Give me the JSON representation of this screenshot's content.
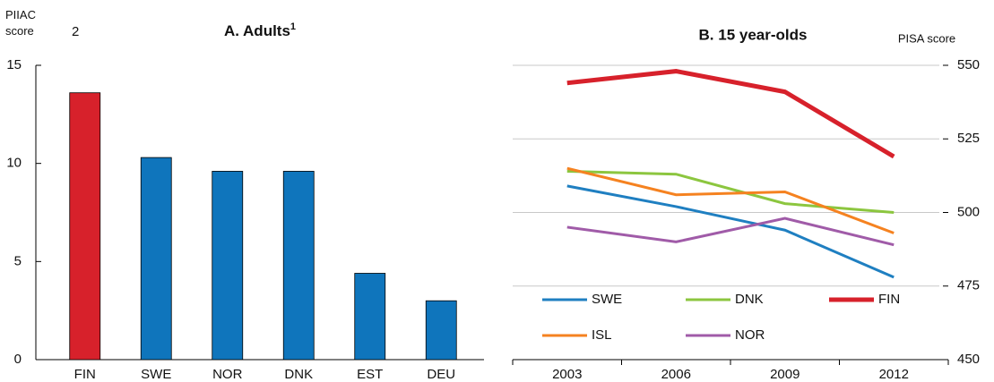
{
  "chart_data": [
    {
      "type": "bar",
      "title": "A. Adults",
      "title_note": "1",
      "ylabel": "PIIAC score",
      "ylabel_note": "2",
      "categories": [
        "FIN",
        "SWE",
        "NOR",
        "DNK",
        "EST",
        "DEU"
      ],
      "values": [
        13.6,
        10.3,
        9.6,
        9.6,
        4.4,
        3.0
      ],
      "colors": [
        "#d7212b",
        "#0f75bc",
        "#0f75bc",
        "#0f75bc",
        "#0f75bc",
        "#0f75bc"
      ],
      "ylim": [
        0,
        15
      ],
      "yticks": [
        0,
        5,
        10,
        15
      ],
      "grid": false
    },
    {
      "type": "line",
      "title": "B. 15 year-olds",
      "ylabel": "PISA score",
      "categories": [
        "2003",
        "2006",
        "2009",
        "2012"
      ],
      "series": [
        {
          "name": "SWE",
          "color": "#1f7fc1",
          "values": [
            509,
            502,
            494,
            478
          ]
        },
        {
          "name": "DNK",
          "color": "#8cc63f",
          "values": [
            514,
            513,
            503,
            500
          ]
        },
        {
          "name": "FIN",
          "color": "#d7212b",
          "values": [
            544,
            548,
            541,
            519
          ]
        },
        {
          "name": "ISL",
          "color": "#f58220",
          "values": [
            515,
            506,
            507,
            493
          ]
        },
        {
          "name": "NOR",
          "color": "#a05ba8",
          "values": [
            495,
            490,
            498,
            489
          ]
        }
      ],
      "ylim": [
        450,
        550
      ],
      "yticks": [
        450,
        475,
        500,
        525,
        550
      ],
      "grid": true,
      "y_axis_side": "right"
    }
  ]
}
